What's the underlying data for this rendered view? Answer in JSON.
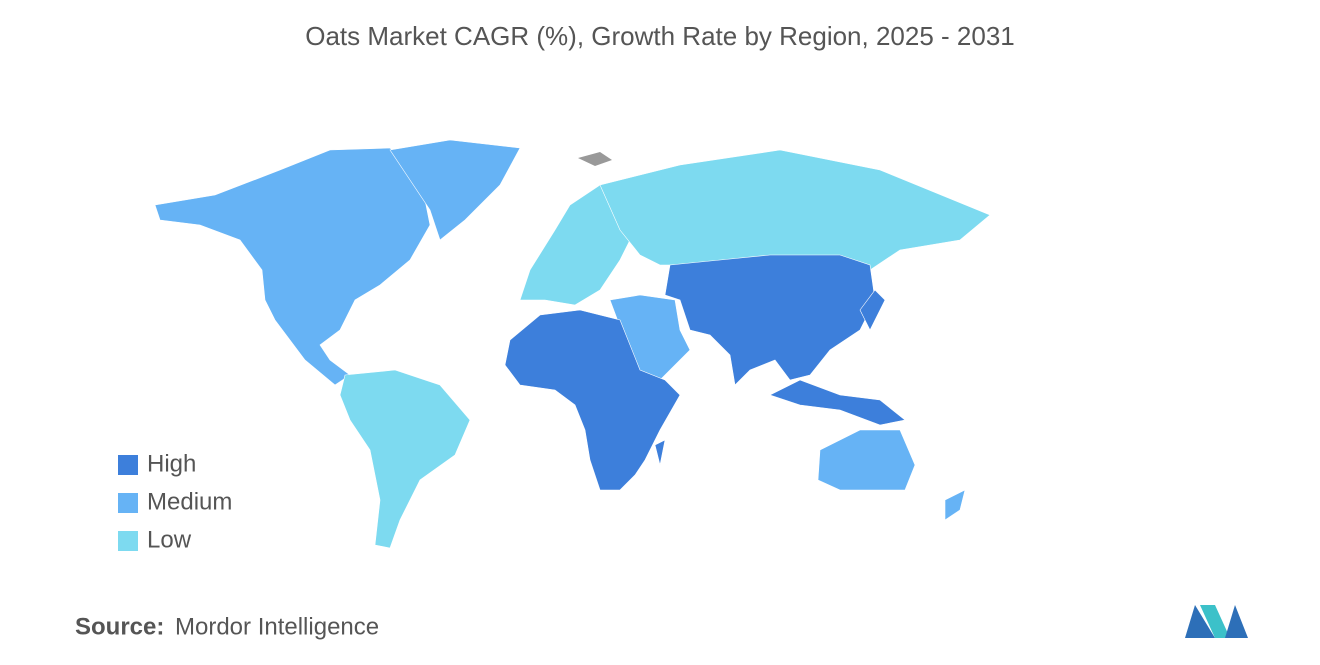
{
  "title": "Oats Market CAGR (%), Growth Rate by Region, 2025 - 2031",
  "legend": [
    {
      "label": "High",
      "color": "#3d7fdb"
    },
    {
      "label": "Medium",
      "color": "#66b3f5"
    },
    {
      "label": "Low",
      "color": "#7ddaf0"
    }
  ],
  "source": {
    "label": "Source:",
    "text": "Mordor Intelligence"
  }
}
